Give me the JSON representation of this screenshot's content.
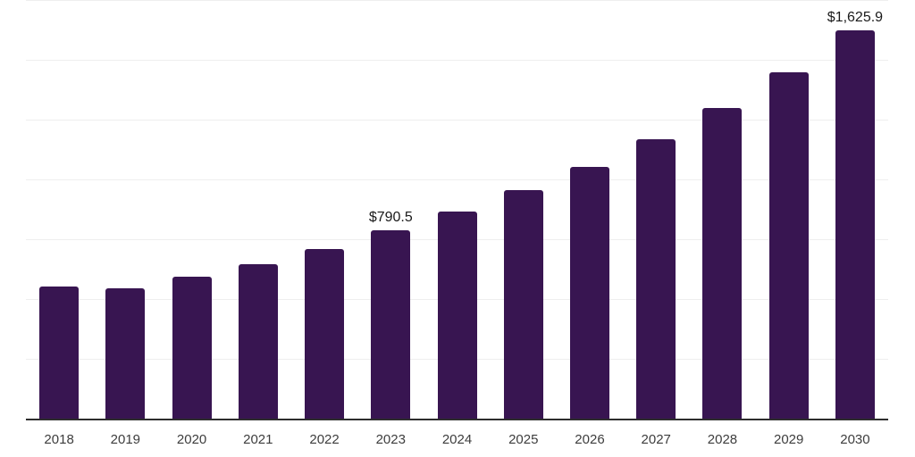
{
  "chart_data": {
    "type": "bar",
    "title": "",
    "xlabel": "",
    "ylabel": "",
    "categories": [
      "2018",
      "2019",
      "2020",
      "2021",
      "2022",
      "2023",
      "2024",
      "2025",
      "2026",
      "2027",
      "2028",
      "2029",
      "2030"
    ],
    "values": [
      557,
      550,
      597,
      649,
      714,
      790.5,
      869,
      958,
      1056,
      1172,
      1302,
      1451,
      1625.9
    ],
    "data_labels": [
      "",
      "",
      "",
      "",
      "",
      "$790.5",
      "",
      "",
      "",
      "",
      "",
      "",
      "$1,625.9"
    ],
    "ylim": [
      0,
      1750
    ],
    "gridline_interval": 250,
    "grid": true,
    "legend": "none",
    "colors": {
      "bar": "#381551",
      "axis_line": "#2e2e2e",
      "gridline": "#eeeeee",
      "data_label": "#1a1a1a",
      "tick_label": "#3d3d3d"
    }
  }
}
